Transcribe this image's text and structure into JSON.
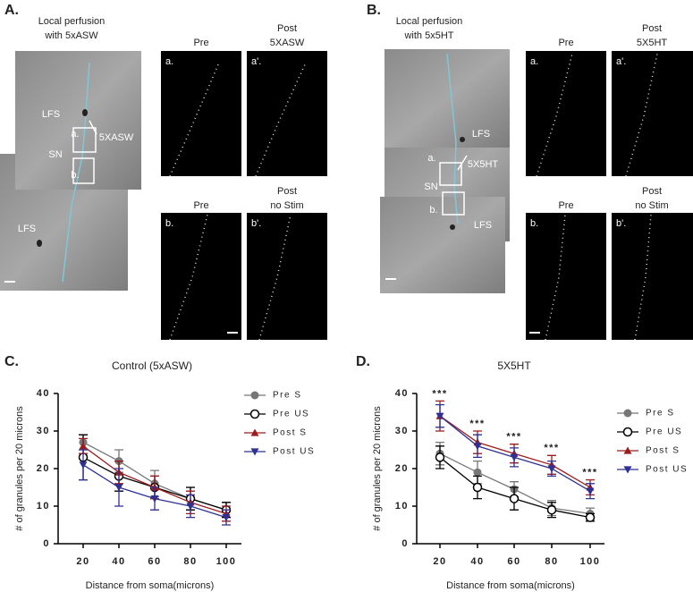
{
  "panels": {
    "A": {
      "label": "A.",
      "title": [
        "Local perfusion",
        "with 5xASW"
      ],
      "image_labels": [
        "LFS",
        "a.",
        "5XASW",
        "SN",
        "b.",
        "LFS"
      ],
      "top": {
        "left_title": "Pre",
        "right_title": [
          "Post",
          "5XASW"
        ],
        "left": "a.",
        "right": "a'."
      },
      "bottom": {
        "left_title": "Pre",
        "right_title": [
          "Post",
          "no Stim"
        ],
        "left": "b.",
        "right": "b'."
      }
    },
    "B": {
      "label": "B.",
      "title": [
        "Local perfusion",
        "with 5x5HT"
      ],
      "image_labels": [
        "LFS",
        "a.",
        "5X5HT",
        "SN",
        "b.",
        "LFS"
      ],
      "top": {
        "left_title": "Pre",
        "right_title": [
          "Post",
          "5X5HT"
        ],
        "left": "a.",
        "right": "a'."
      },
      "bottom": {
        "left_title": "Pre",
        "right_title": [
          "Post",
          "no Stim"
        ],
        "left": "b.",
        "right": "b'."
      }
    }
  },
  "chart_data": [
    {
      "type": "line",
      "panel_label": "C.",
      "title": "Control (5xASW)",
      "x_label": "Distance from soma(microns)",
      "y_label": "# of granules per 20 microns",
      "categories": [
        "20",
        "40",
        "60",
        "80",
        "100"
      ],
      "ylim": [
        0,
        40
      ],
      "yticks": [
        0,
        10,
        20,
        30,
        40
      ],
      "series": [
        {
          "name": "Pre S",
          "color": "#777777",
          "marker": "circle",
          "values": [
            27,
            22,
            16,
            12,
            9
          ],
          "errors": [
            2,
            3,
            3.5,
            3,
            2
          ]
        },
        {
          "name": "Pre US",
          "color": "#000000",
          "marker": "open-circle",
          "values": [
            23,
            18,
            15,
            12,
            9
          ],
          "errors": [
            6,
            4,
            3,
            3,
            2
          ]
        },
        {
          "name": "Post S",
          "color": "#9b1c1c",
          "marker": "triangle",
          "values": [
            26,
            19,
            15,
            11,
            8
          ],
          "errors": [
            2,
            3,
            3,
            3,
            2
          ]
        },
        {
          "name": "Post US",
          "color": "#2e3192",
          "marker": "triangle-down",
          "values": [
            21,
            15,
            12,
            10,
            7
          ],
          "errors": [
            4,
            5,
            3,
            3,
            2
          ]
        }
      ]
    },
    {
      "type": "line",
      "panel_label": "D.",
      "title": "5X5HT",
      "x_label": "Distance from soma(microns)",
      "y_label": "# of granules per 20 microns",
      "categories": [
        "20",
        "40",
        "60",
        "80",
        "100"
      ],
      "ylim": [
        0,
        40
      ],
      "yticks": [
        0,
        10,
        20,
        30,
        40
      ],
      "annotations": [
        "***",
        "***",
        "***",
        "***",
        "***"
      ],
      "series": [
        {
          "name": "Pre S",
          "color": "#777777",
          "marker": "circle",
          "values": [
            24,
            19,
            14.5,
            9.5,
            8
          ],
          "errors": [
            3,
            3,
            2,
            2,
            1.5
          ]
        },
        {
          "name": "Pre US",
          "color": "#000000",
          "marker": "open-circle",
          "values": [
            23,
            15,
            12,
            9,
            7
          ],
          "errors": [
            3,
            3,
            3,
            2,
            1
          ]
        },
        {
          "name": "Post S",
          "color": "#9b1c1c",
          "marker": "triangle",
          "values": [
            34,
            27,
            24,
            21,
            15
          ],
          "errors": [
            4,
            3,
            2.5,
            2.5,
            2
          ]
        },
        {
          "name": "Post US",
          "color": "#2e3192",
          "marker": "triangle-down",
          "values": [
            34,
            26,
            23,
            20,
            14
          ],
          "errors": [
            3,
            3,
            2.5,
            2,
            2
          ]
        }
      ]
    }
  ]
}
